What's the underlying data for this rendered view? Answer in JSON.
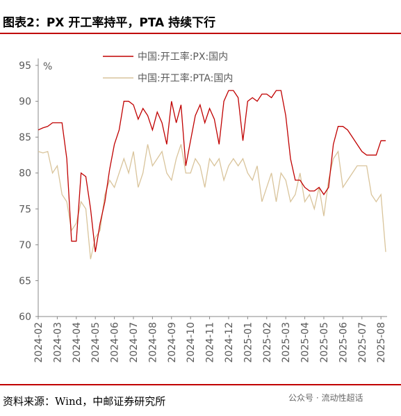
{
  "chart_data": {
    "type": "line",
    "title": "图表2：PX 开工率持平，PTA 持续下行",
    "y_label": "%",
    "source": "资料来源：Wind，中邮证券研究所",
    "watermark": "公众号 · 流动性超话",
    "categories": [
      "2024-02",
      null,
      null,
      null,
      "2024-03",
      null,
      null,
      null,
      "2024-04",
      null,
      null,
      null,
      "2024-05",
      null,
      null,
      null,
      "2024-06",
      null,
      null,
      null,
      "2024-07",
      null,
      null,
      null,
      "2024-08",
      null,
      null,
      null,
      "2024-09",
      null,
      null,
      null,
      "2024-10",
      null,
      null,
      null,
      "2024-11",
      null,
      null,
      null,
      "2024-12",
      null,
      null,
      null,
      "2025-01",
      null,
      null,
      null,
      "2025-02",
      null,
      null,
      null,
      "2025-03",
      null,
      null,
      null,
      "2025-04",
      null,
      null,
      null,
      "2025-05",
      null,
      null,
      null,
      "2025-06",
      null,
      null,
      null,
      "2025-07",
      null,
      null,
      null,
      "2025-08",
      null
    ],
    "series": [
      {
        "name": "中国:开工率:PX:国内",
        "color": "#c00000",
        "values": [
          86,
          86.3,
          86.5,
          87,
          87,
          87,
          82,
          70.5,
          70.5,
          80,
          79.5,
          75,
          69,
          73,
          76,
          80.5,
          84,
          86,
          90,
          90,
          89.5,
          87.5,
          89,
          88,
          86,
          88.5,
          87,
          84,
          90,
          87,
          89.5,
          81,
          84.5,
          88,
          89.5,
          87,
          89,
          87.5,
          84,
          90,
          91.5,
          91.5,
          90.5,
          84.5,
          90,
          90.5,
          90,
          91,
          91,
          90.5,
          91.5,
          91.5,
          88,
          82,
          79,
          79,
          78,
          77.5,
          77.5,
          78,
          77,
          78,
          84,
          86.5,
          86.5,
          86,
          85,
          84,
          83,
          82.5,
          82.5,
          82.5,
          84.5,
          84.5
        ]
      },
      {
        "name": "中国:开工率:PTA:国内",
        "color": "#d9c49b",
        "values": [
          83,
          82.8,
          83,
          80,
          81,
          77,
          76,
          72,
          73,
          76,
          75,
          68,
          71,
          72,
          77,
          79,
          78,
          80,
          82,
          80,
          83,
          78,
          80,
          84,
          81,
          82,
          83,
          80,
          79,
          82,
          84,
          80,
          80,
          82,
          81,
          78,
          82,
          81,
          82,
          79,
          81,
          82,
          81,
          82,
          80,
          79,
          81,
          76,
          78,
          80,
          76,
          80,
          79,
          76,
          77,
          80,
          76,
          77,
          75,
          78,
          74,
          79,
          82,
          83,
          78,
          79,
          80,
          81,
          81,
          81,
          77,
          76,
          77,
          69
        ]
      }
    ],
    "ylim": [
      60,
      95
    ],
    "yticks": [
      60,
      65,
      70,
      75,
      80,
      85,
      90,
      95
    ]
  }
}
